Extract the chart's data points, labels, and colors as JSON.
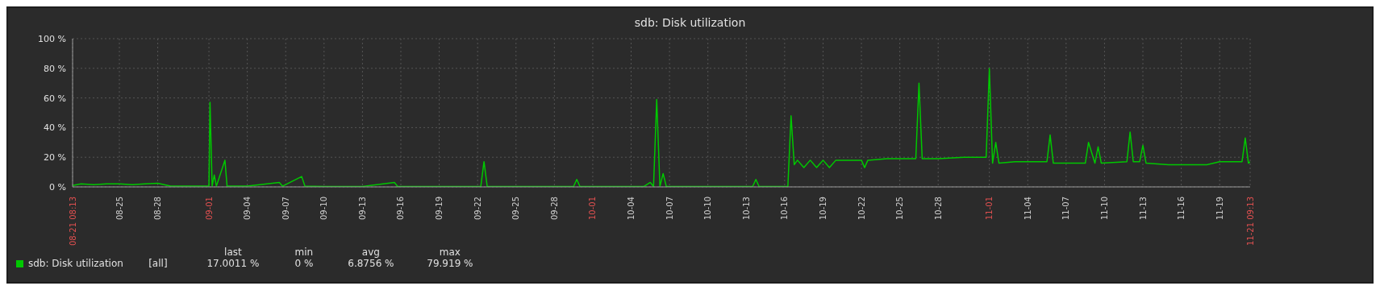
{
  "chart_data": {
    "type": "line",
    "title": "sdb: Disk utilization",
    "x": [
      "--08-21T08:13",
      "--08-22",
      "--08-23",
      "--08-24",
      "--08-25",
      "--08-26",
      "--08-27",
      "--08-28",
      "--08-29",
      "--08-30",
      "--08-31",
      "--09-01T00:00",
      "--09-01T02:00",
      "--09-01T06:00",
      "--09-01T10:00",
      "--09-01T14:00",
      "--09-02T06:00",
      "--09-02T10:00",
      "--09-04",
      "--09-06T12:00",
      "--09-06T18:00",
      "--09-08T06:00",
      "--09-08T12:00",
      "--09-10",
      "--09-13",
      "--09-15T12:00",
      "--09-15T18:00",
      "--09-19",
      "--09-22T06:00",
      "--09-22T12:00",
      "--09-22T18:00",
      "--09-26",
      "--09-29T12:00",
      "--09-29T18:00",
      "--09-30",
      "--10-05T00:00",
      "--10-05T12:00",
      "--10-05T18:00",
      "--10-06T00:00",
      "--10-06T06:00",
      "--10-06T12:00",
      "--10-06T18:00",
      "--10-10",
      "--10-13T12:00",
      "--10-13T18:00",
      "--10-14",
      "--10-16T06:00",
      "--10-16T12:00",
      "--10-16T18:00",
      "--10-17T00:00",
      "--10-17T12:00",
      "--10-18T00:00",
      "--10-18T12:00",
      "--10-19T00:00",
      "--10-19T12:00",
      "--10-20",
      "--10-21",
      "--10-22T00:00",
      "--10-22T06:00",
      "--10-22T12:00",
      "--10-24",
      "--10-26T06:00",
      "--10-26T12:00",
      "--10-26T18:00",
      "--10-28",
      "--10-30",
      "--10-31T18:00",
      "--11-01T00:00",
      "--11-01T06:00",
      "--11-01T12:00",
      "--11-01T18:00",
      "--11-03",
      "--11-05T12:00",
      "--11-05T18:00",
      "--11-06",
      "--11-07",
      "--11-08T12:00",
      "--11-08T18:00",
      "--11-09T06:00",
      "--11-09T12:00",
      "--11-09T18:00",
      "--11-11T18:00",
      "--11-12T00:00",
      "--11-12T06:00",
      "--11-12T18:00",
      "--11-13T00:00",
      "--11-13T06:00",
      "--11-15",
      "--11-18",
      "--11-19",
      "--11-20T18:00",
      "--11-21T00:00",
      "--11-21T06:00",
      "--11-21T09:13"
    ],
    "series": [
      {
        "name": "sdb: Disk utilization",
        "color": "#00c800",
        "values": [
          1,
          2,
          1.5,
          2,
          2,
          1.5,
          2,
          2.5,
          0.5,
          0.5,
          0.5,
          0.5,
          57,
          0.5,
          8,
          0.5,
          18,
          0.5,
          0.5,
          3,
          0.5,
          7,
          0.5,
          0.3,
          0.3,
          3,
          0.3,
          0.3,
          0.3,
          17,
          0.3,
          0.3,
          0.3,
          5,
          0.3,
          0.3,
          3,
          0.3,
          59,
          0.3,
          9,
          0.3,
          0.3,
          0.3,
          5,
          0.3,
          0.3,
          48,
          15,
          18,
          13,
          18,
          13,
          18,
          13,
          18,
          18,
          18,
          13,
          18,
          19,
          19,
          70,
          19,
          19,
          20,
          20,
          79.9,
          16,
          30,
          16,
          17,
          17,
          35,
          16,
          16,
          16,
          30,
          16,
          27,
          16,
          17,
          37,
          17,
          17,
          28,
          16,
          15,
          15,
          17,
          17,
          33,
          16,
          17
        ]
      }
    ],
    "xlim": [
      "--08-21T08:13",
      "--11-21T09:13"
    ],
    "xticks": [
      {
        "value": "--08-21T08:13",
        "label": "08-21 08:13"
      },
      {
        "value": "--08-25",
        "label": "08-25"
      },
      {
        "value": "--08-28",
        "label": "08-28"
      },
      {
        "value": "--09-01",
        "label": "09-01"
      },
      {
        "value": "--09-04",
        "label": "09-04"
      },
      {
        "value": "--09-07",
        "label": "09-07"
      },
      {
        "value": "--09-10",
        "label": "09-10"
      },
      {
        "value": "--09-13",
        "label": "09-13"
      },
      {
        "value": "--09-16",
        "label": "09-16"
      },
      {
        "value": "--09-19",
        "label": "09-19"
      },
      {
        "value": "--09-22",
        "label": "09-22"
      },
      {
        "value": "--09-25",
        "label": "09-25"
      },
      {
        "value": "--09-28",
        "label": "09-28"
      },
      {
        "value": "--10-01",
        "label": "10-01"
      },
      {
        "value": "--10-04",
        "label": "10-04"
      },
      {
        "value": "--10-07",
        "label": "10-07"
      },
      {
        "value": "--10-10",
        "label": "10-10"
      },
      {
        "value": "--10-13",
        "label": "10-13"
      },
      {
        "value": "--10-16",
        "label": "10-16"
      },
      {
        "value": "--10-19",
        "label": "10-19"
      },
      {
        "value": "--10-22",
        "label": "10-22"
      },
      {
        "value": "--10-25",
        "label": "10-25"
      },
      {
        "value": "--10-28",
        "label": "10-28"
      },
      {
        "value": "--11-01",
        "label": "11-01"
      },
      {
        "value": "--11-04",
        "label": "11-04"
      },
      {
        "value": "--11-07",
        "label": "11-07"
      },
      {
        "value": "--11-10",
        "label": "11-10"
      },
      {
        "value": "--11-13",
        "label": "11-13"
      },
      {
        "value": "--11-16",
        "label": "11-16"
      },
      {
        "value": "--11-19",
        "label": "11-19"
      },
      {
        "value": "--11-21T09:13",
        "label": "11-21 09:13"
      }
    ],
    "ylim": [
      0,
      100
    ],
    "yticks": [
      {
        "value": 0,
        "label": "0 %"
      },
      {
        "value": 20,
        "label": "20 %"
      },
      {
        "value": 40,
        "label": "40 %"
      },
      {
        "value": 60,
        "label": "60 %"
      },
      {
        "value": 80,
        "label": "80 %"
      },
      {
        "value": 100,
        "label": "100 %"
      }
    ],
    "grid": true,
    "legend": "bottom",
    "annotations": [
      "[all]",
      "last",
      "min",
      "avg",
      "max",
      "17.0011 %",
      "0 %",
      "6.8756 %",
      "79.919 %"
    ]
  }
}
